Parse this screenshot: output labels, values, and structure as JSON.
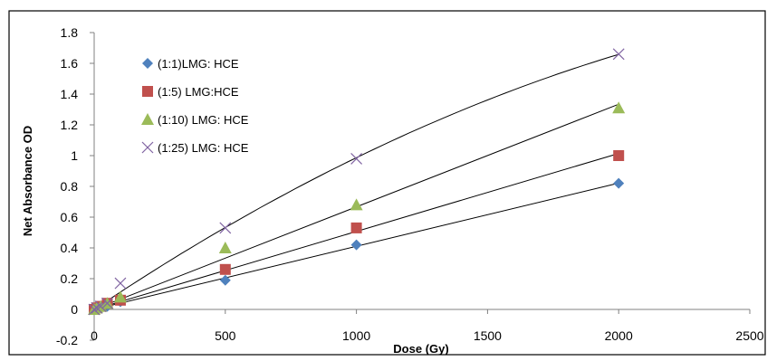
{
  "chart_data": {
    "type": "scatter",
    "xlabel": "Dose (Gy)",
    "ylabel": "Net Absorbance OD",
    "xlim": [
      0,
      2500
    ],
    "ylim": [
      -0.2,
      1.8
    ],
    "x_ticks": [
      "0",
      "500",
      "1000",
      "1500",
      "2000",
      "2500"
    ],
    "y_ticks": [
      "-0.2",
      "0",
      "0.2",
      "0.4",
      "0.6",
      "0.8",
      "1",
      "1.2",
      "1.4",
      "1.6",
      "1.8"
    ],
    "grid": false,
    "legend_position": "top-left",
    "series": [
      {
        "name": "(1:1)LMG: HCE",
        "marker": "diamond",
        "color": "#4F81BD",
        "x": [
          0,
          10,
          25,
          50,
          100,
          500,
          1000,
          2000
        ],
        "y": [
          0,
          0.005,
          0.01,
          0.02,
          0.05,
          0.19,
          0.42,
          0.82
        ],
        "trend": "linear"
      },
      {
        "name": "(1:5) LMG:HCE",
        "marker": "square",
        "color": "#C0504D",
        "x": [
          0,
          10,
          25,
          50,
          100,
          500,
          1000,
          2000
        ],
        "y": [
          0,
          0.01,
          0.02,
          0.04,
          0.06,
          0.26,
          0.53,
          1.0
        ],
        "trend": "linear"
      },
      {
        "name": "(1:10) LMG: HCE",
        "marker": "triangle",
        "color": "#9BBB59",
        "x": [
          0,
          10,
          25,
          50,
          100,
          500,
          1000,
          2000
        ],
        "y": [
          0,
          0.01,
          0.02,
          0.04,
          0.08,
          0.4,
          0.68,
          1.31
        ],
        "trend": "linear"
      },
      {
        "name": "(1:25) LMG: HCE",
        "marker": "x",
        "color": "#8064A2",
        "x": [
          0,
          10,
          25,
          50,
          100,
          500,
          1000,
          2000
        ],
        "y": [
          0,
          0.01,
          0.02,
          0.04,
          0.17,
          0.53,
          0.98,
          1.66
        ],
        "trend": "curve"
      }
    ]
  }
}
